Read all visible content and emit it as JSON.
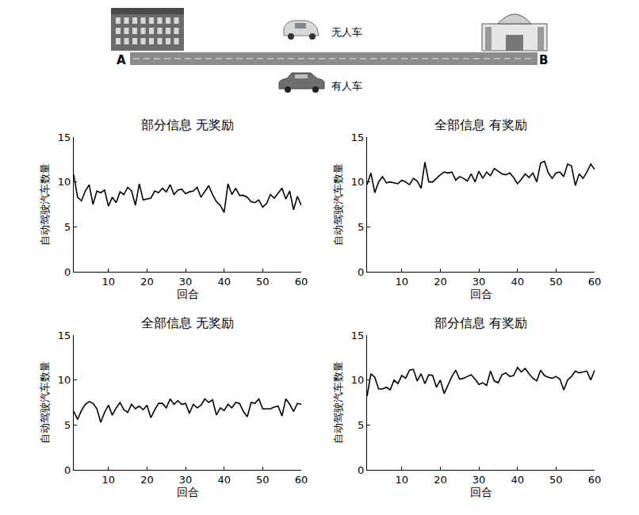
{
  "diagram": {
    "start": "A",
    "end": "B",
    "upper_label": "无人车",
    "lower_label": "有人车"
  },
  "chart_data": [
    {
      "type": "line",
      "title": "部分信息 无奖励",
      "xlabel": "回合",
      "ylabel": "自动驾驶汽车数量",
      "x": [
        1,
        2,
        3,
        4,
        5,
        6,
        7,
        8,
        9,
        10,
        11,
        12,
        13,
        14,
        15,
        16,
        17,
        18,
        19,
        20,
        21,
        22,
        23,
        24,
        25,
        26,
        27,
        28,
        29,
        30,
        31,
        32,
        33,
        34,
        35,
        36,
        37,
        38,
        39,
        40,
        41,
        42,
        43,
        44,
        45,
        46,
        47,
        48,
        49,
        50,
        51,
        52,
        53,
        54,
        55,
        56,
        57,
        58,
        59,
        60
      ],
      "values": [
        10.8,
        8.3,
        7.9,
        9.0,
        9.7,
        7.5,
        9.0,
        8.8,
        9.1,
        7.3,
        8.3,
        7.7,
        8.9,
        8.6,
        9.4,
        9.0,
        7.4,
        9.8,
        8.0,
        8.1,
        8.2,
        9.0,
        8.8,
        9.3,
        8.9,
        9.7,
        8.6,
        9.1,
        9.2,
        8.7,
        8.9,
        9.0,
        9.4,
        8.3,
        8.9,
        9.6,
        8.6,
        7.8,
        7.4,
        6.6,
        9.8,
        8.6,
        9.3,
        8.5,
        8.5,
        8.3,
        7.8,
        7.7,
        8.0,
        7.2,
        7.6,
        8.6,
        8.2,
        8.8,
        9.3,
        8.1,
        9.0,
        6.9,
        8.4,
        7.4
      ],
      "color": "#000000",
      "xlim": [
        1,
        60
      ],
      "xticks": [
        10,
        20,
        30,
        40,
        50,
        60
      ],
      "ylim": [
        0,
        15
      ],
      "yticks": [
        0,
        5,
        10,
        15
      ],
      "grid": false
    },
    {
      "type": "line",
      "title": "全部信息 有奖励",
      "xlabel": "回合",
      "ylabel": "自动驾驶汽车数量",
      "x": [
        1,
        2,
        3,
        4,
        5,
        6,
        7,
        8,
        9,
        10,
        11,
        12,
        13,
        14,
        15,
        16,
        17,
        18,
        19,
        20,
        21,
        22,
        23,
        24,
        25,
        26,
        27,
        28,
        29,
        30,
        31,
        32,
        33,
        34,
        35,
        36,
        37,
        38,
        39,
        40,
        41,
        42,
        43,
        44,
        45,
        46,
        47,
        48,
        49,
        50,
        51,
        52,
        53,
        54,
        55,
        56,
        57,
        58,
        59,
        60
      ],
      "values": [
        9.7,
        11.0,
        8.8,
        10.0,
        10.6,
        9.9,
        10.0,
        9.9,
        9.8,
        10.2,
        10.0,
        9.7,
        10.4,
        10.1,
        9.3,
        12.2,
        10.0,
        10.0,
        10.4,
        10.8,
        11.1,
        11.0,
        11.1,
        10.2,
        10.6,
        10.4,
        10.1,
        10.9,
        10.0,
        11.2,
        10.4,
        11.1,
        10.7,
        11.5,
        11.2,
        10.9,
        10.8,
        11.0,
        10.5,
        9.8,
        10.3,
        10.9,
        10.5,
        11.0,
        10.0,
        12.1,
        12.3,
        11.0,
        10.4,
        11.0,
        11.1,
        10.6,
        12.0,
        11.8,
        9.6,
        10.9,
        10.4,
        11.1,
        12.0,
        11.4
      ],
      "color": "#000000",
      "xlim": [
        1,
        60
      ],
      "xticks": [
        10,
        20,
        30,
        40,
        50,
        60
      ],
      "ylim": [
        0,
        15
      ],
      "yticks": [
        0,
        5,
        10,
        15
      ],
      "grid": false
    },
    {
      "type": "line",
      "title": "全部信息 无奖励",
      "xlabel": "回合",
      "ylabel": "自动驾驶汽车数量",
      "x": [
        1,
        2,
        3,
        4,
        5,
        6,
        7,
        8,
        9,
        10,
        11,
        12,
        13,
        14,
        15,
        16,
        17,
        18,
        19,
        20,
        21,
        22,
        23,
        24,
        25,
        26,
        27,
        28,
        29,
        30,
        31,
        32,
        33,
        34,
        35,
        36,
        37,
        38,
        39,
        40,
        41,
        42,
        43,
        44,
        45,
        46,
        47,
        48,
        49,
        50,
        51,
        52,
        53,
        54,
        55,
        56,
        57,
        58,
        59,
        60
      ],
      "values": [
        6.5,
        5.6,
        6.6,
        7.3,
        7.6,
        7.4,
        6.8,
        5.3,
        6.4,
        7.2,
        6.1,
        6.9,
        7.5,
        6.7,
        6.4,
        7.3,
        6.8,
        7.1,
        6.7,
        7.2,
        5.8,
        6.7,
        7.4,
        7.4,
        6.9,
        7.9,
        7.3,
        7.7,
        7.3,
        7.4,
        6.3,
        7.3,
        6.9,
        7.2,
        7.9,
        7.5,
        7.8,
        6.1,
        6.9,
        6.6,
        7.3,
        6.9,
        7.5,
        7.4,
        6.5,
        5.9,
        7.5,
        7.4,
        7.9,
        6.8,
        6.8,
        6.8,
        7.0,
        7.1,
        6.0,
        7.9,
        7.3,
        6.5,
        7.4,
        7.3
      ],
      "color": "#000000",
      "xlim": [
        1,
        60
      ],
      "xticks": [
        10,
        20,
        30,
        40,
        50,
        60
      ],
      "ylim": [
        0,
        15
      ],
      "yticks": [
        0,
        5,
        10,
        15
      ],
      "grid": false
    },
    {
      "type": "line",
      "title": "部分信息 有奖励",
      "xlabel": "回合",
      "ylabel": "自动驾驶汽车数量",
      "x": [
        1,
        2,
        3,
        4,
        5,
        6,
        7,
        8,
        9,
        10,
        11,
        12,
        13,
        14,
        15,
        16,
        17,
        18,
        19,
        20,
        21,
        22,
        23,
        24,
        25,
        26,
        27,
        28,
        29,
        30,
        31,
        32,
        33,
        34,
        35,
        36,
        37,
        38,
        39,
        40,
        41,
        42,
        43,
        44,
        45,
        46,
        47,
        48,
        49,
        50,
        51,
        52,
        53,
        54,
        55,
        56,
        57,
        58,
        59,
        60
      ],
      "values": [
        8.2,
        10.7,
        10.3,
        9.0,
        9.0,
        9.2,
        8.9,
        10.0,
        9.6,
        10.5,
        10.2,
        11.1,
        11.2,
        9.9,
        10.7,
        9.6,
        10.6,
        10.5,
        9.2,
        10.0,
        8.5,
        9.4,
        10.4,
        11.1,
        10.1,
        10.2,
        10.4,
        10.6,
        10.1,
        9.5,
        9.7,
        9.4,
        11.0,
        9.9,
        9.7,
        10.6,
        10.8,
        10.4,
        10.5,
        11.4,
        10.9,
        11.3,
        10.7,
        10.2,
        9.9,
        11.1,
        10.5,
        10.3,
        10.2,
        10.4,
        10.1,
        8.9,
        10.0,
        10.4,
        11.0,
        10.8,
        10.9,
        11.0,
        10.0,
        11.1
      ],
      "color": "#000000",
      "xlim": [
        1,
        60
      ],
      "xticks": [
        10,
        20,
        30,
        40,
        50,
        60
      ],
      "ylim": [
        0,
        15
      ],
      "yticks": [
        0,
        5,
        10,
        15
      ],
      "grid": false
    }
  ]
}
